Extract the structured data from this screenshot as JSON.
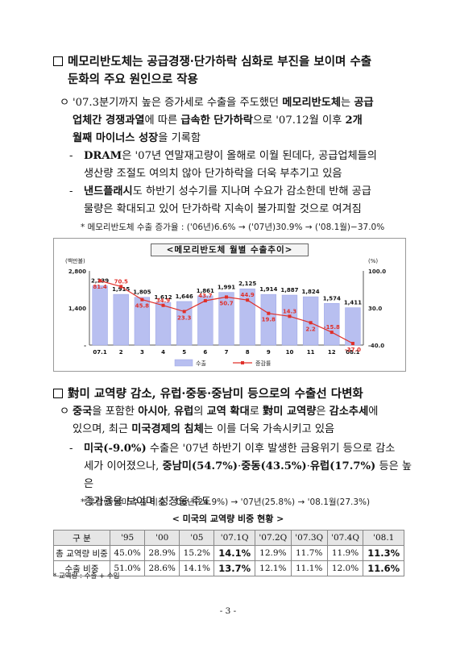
{
  "section1": {
    "heading_line1": "메모리반도체는 공급경쟁·단가하락 심화로 부진을 보이며 수출",
    "heading_line2": "둔화의 주요 원인으로 작용",
    "para1": {
      "bullet": "ㅇ",
      "l1_a": "'07.3분기까지 높은 증가세로 수출을 주도했던 ",
      "l1_b": "메모리반도체",
      "l1_c": "는 ",
      "l1_d": "공급",
      "l2_a": "업체간 경쟁과열",
      "l2_b": "에 따른 ",
      "l2_c": "급속한 단가하락",
      "l2_d": "으로 '07.12월 이후 ",
      "l2_e": "2개",
      "l3_a": "월째 마이너스 성장",
      "l3_b": "을 기록함"
    },
    "para2": {
      "dash": "-",
      "l1_a": "DRAM",
      "l1_b": "은 '07년 연말재고량이 올해로 이월 된데다, 공급업체들의",
      "l2": "생산량 조절도 여의치 않아 단가하락을 더욱 부추기고 있음"
    },
    "para3": {
      "dash": "-",
      "l1_a": "낸드플래시",
      "l1_b": "도 하반기 성수기를 지나며 수요가 감소한데 반해 공급",
      "l2": "물량은 확대되고 있어 단가하락 지속이 불가피할 것으로 여겨짐"
    },
    "note": "* 메모리반도체 수출 증가율 : ('06년)6.6% → ('07년)30.9% → ('08.1월)−37.0%"
  },
  "chart_data": {
    "type": "bar",
    "title": "<메모리반도체 월별 수출추이>",
    "categories": [
      "07.1",
      "2",
      "3",
      "4",
      "5",
      "6",
      "7",
      "8",
      "9",
      "10",
      "11",
      "12",
      "08.1"
    ],
    "series": [
      {
        "name": "수출",
        "type": "bar",
        "axis": "left",
        "color": "#b8bff0",
        "values": [
          2239,
          1915,
          1805,
          1612,
          1646,
          1861,
          1991,
          2125,
          1914,
          1887,
          1824,
          1574,
          1411
        ]
      },
      {
        "name": "증감률",
        "type": "line",
        "axis": "right",
        "color": "#e0302a",
        "values": [
          81.4,
          70.5,
          45.8,
          34.9,
          23.3,
          43.7,
          50.7,
          44.9,
          19.8,
          14.3,
          2.2,
          -15.8,
          -37.0
        ]
      }
    ],
    "ylabel": "(백만불)",
    "y2label": "(%)",
    "ylim": [
      0,
      2800
    ],
    "y2lim": [
      -40,
      100
    ],
    "yticks": [
      "2,800",
      "1,400",
      "-"
    ],
    "y2ticks": [
      "100.0",
      "30.0",
      "-40.0"
    ],
    "bar_labels": [
      "2,239",
      "1,915",
      "1,805",
      "1,612",
      "1,646",
      "1,861",
      "1,991",
      "2,125",
      "1,914",
      "1,887",
      "1,824",
      "1,574",
      "1,411"
    ],
    "line_labels": [
      "81.4",
      "70.5",
      "45.8",
      "34.9",
      "23.3",
      "43.7",
      "50.7",
      "44.9",
      "19.8",
      "14.3",
      "2.2",
      "-15.8",
      "-37.0"
    ],
    "legend": [
      "수출",
      "증감률"
    ],
    "legend_position": "bottom",
    "grid": false
  },
  "section2": {
    "heading": "對미 교역량 감소, 유럽·중동·중남미 등으로의 수출선 다변화",
    "para1": {
      "bullet": "ㅇ",
      "l1_a": "중국",
      "l1_b": "을 포함한 ",
      "l1_c": "아시아",
      "l1_d": ", ",
      "l1_e": "유럽",
      "l1_f": "의 ",
      "l1_g": "교역 확대",
      "l1_h": "로 ",
      "l1_i": "對미 교역량",
      "l1_j": "은 ",
      "l1_k": "감소추세",
      "l1_l": "에",
      "l2_a": "있으며, 최근 ",
      "l2_b": "미국경제의 침체",
      "l2_c": "는 이를 더욱 가속시키고 있음"
    },
    "para2": {
      "dash": "-",
      "l1_a": "미국(-9.0%)",
      "l1_b": " 수출은 '07년 하반기 이후 발생한 금융위기 등으로 감소",
      "l2_a": "세가 이어졌으나, ",
      "l2_b": "중남미(54.7%)",
      "l2_c": "·",
      "l2_d": "중동(43.5%)",
      "l2_e": "·",
      "l2_f": "유럽(17.7%)",
      "l2_g": " 등은 높은",
      "l3": "증가율을 보이며 성장을 주도"
    },
    "note": "* 유럽·중남미 수출 비중 : '06년(24.9%) → '07년(25.8%) → '08.1월(27.3%)"
  },
  "table": {
    "title": "< 미국의 교역량 비중 현황 >",
    "headers": [
      "구 분",
      "'95",
      "'00",
      "'05",
      "'07.1Q",
      "'07.2Q",
      "'07.3Q",
      "'07.4Q",
      "'08.1"
    ],
    "rows": [
      {
        "label": "총 교역량 비중",
        "cells": [
          "45.0%",
          "28.9%",
          "15.2%",
          "14.1%",
          "12.9%",
          "11.7%",
          "11.9%",
          "11.3%"
        ]
      },
      {
        "label": "수출 비중",
        "cells": [
          "51.0%",
          "28.6%",
          "14.1%",
          "13.7%",
          "12.1%",
          "11.1%",
          "12.0%",
          "11.6%"
        ]
      }
    ],
    "highlight_columns": [
      3,
      7
    ],
    "footnote": "* 교역량 : 수출 + 수입"
  },
  "page_number": "- 3 -"
}
